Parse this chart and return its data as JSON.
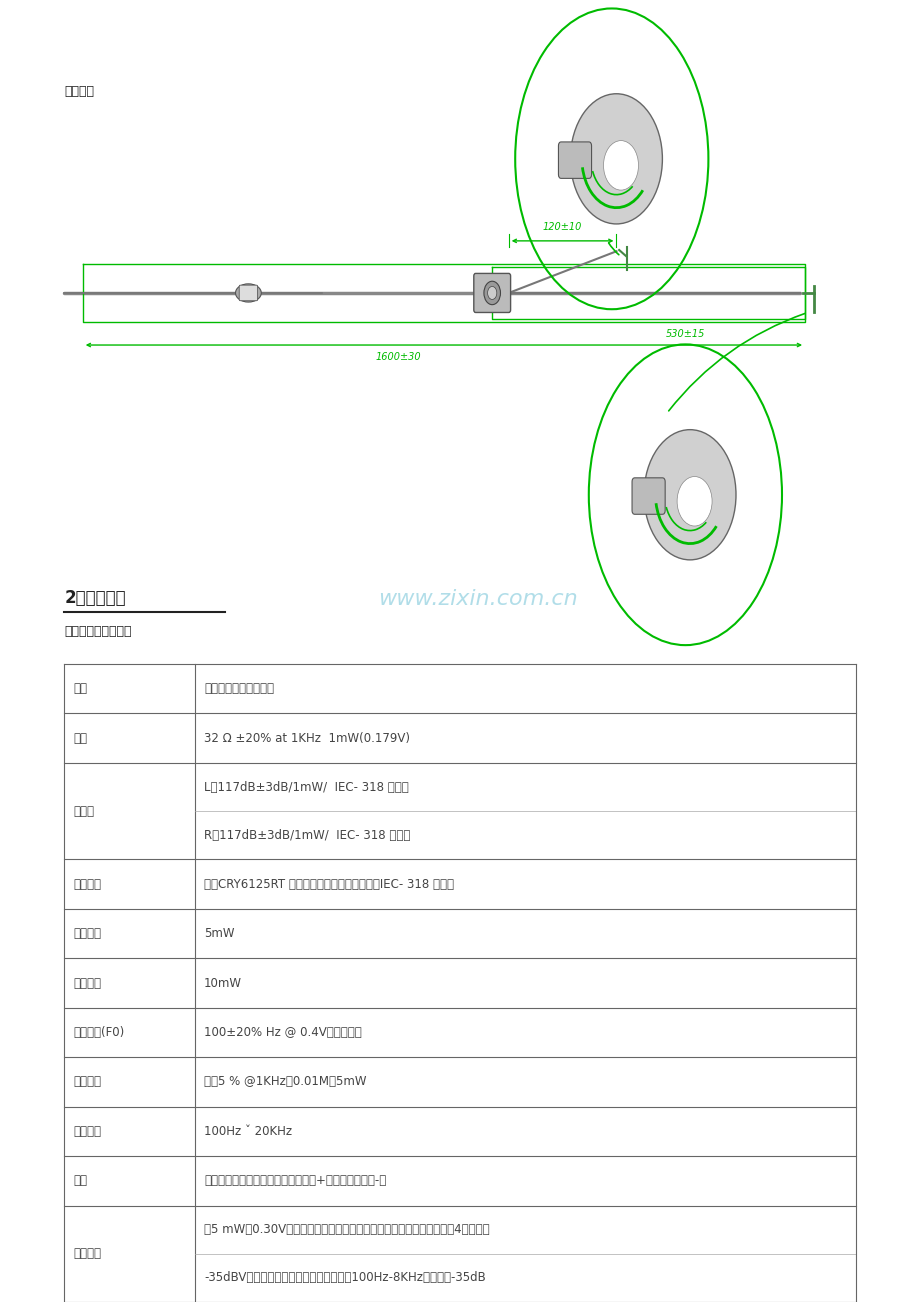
{
  "bg_color": "#ffffff",
  "label_earphone": "耳机端：",
  "label_section": "2、基本参数",
  "label_subtitle": "受话器电性能参数：",
  "watermark": "www.zixin.com.cn",
  "dim_120": "120±10",
  "dim_530": "530±15",
  "dim_1600": "1600±30",
  "table_rows": [
    [
      "项目",
      "要求参数或者测试条件",
      false
    ],
    [
      "阻抗",
      "32 Ω ±20% at 1KHz  1mW(0.179V)",
      false
    ],
    [
      "灵敏度",
      "L：117dB±3dB/1mW/  IEC- 318 仿真耳\nR：117dB±3dB/1mW/  IEC- 318 仿真耳",
      true
    ],
    [
      "测量方法",
      "基于CRY6125RT 手机免提耳机传声器测试系统IEC- 318 仿真耳",
      false
    ],
    [
      "额定功率",
      "5mW",
      false
    ],
    [
      "最大功率",
      "10mW",
      false
    ],
    [
      "共振频率(F0)",
      "100±20% Hz @ 0.4V（无障板）",
      false
    ],
    [
      "谐波失真",
      "小于5 % @1KHz，0.01M，5mW",
      false
    ],
    [
      "频率范围",
      "100Hz ˇ 20KHz",
      false
    ],
    [
      "极性",
      "面对受话器引线护胶点，右为正极（+），左为负极（-）",
      false
    ],
    [
      "纯音检听",
      "在5 mW（0.30V）正弦信号源下应正常工作，应无咯吱声和高频干扰声4串扰：当\n-35dBV信号输入受话器时，麦克风输出（100Hz-8KHz）应小于-35dB",
      true
    ]
  ],
  "green_color": "#00bb00",
  "dark_color": "#222222",
  "table_text_color": "#444444",
  "table_border_color": "#666666"
}
